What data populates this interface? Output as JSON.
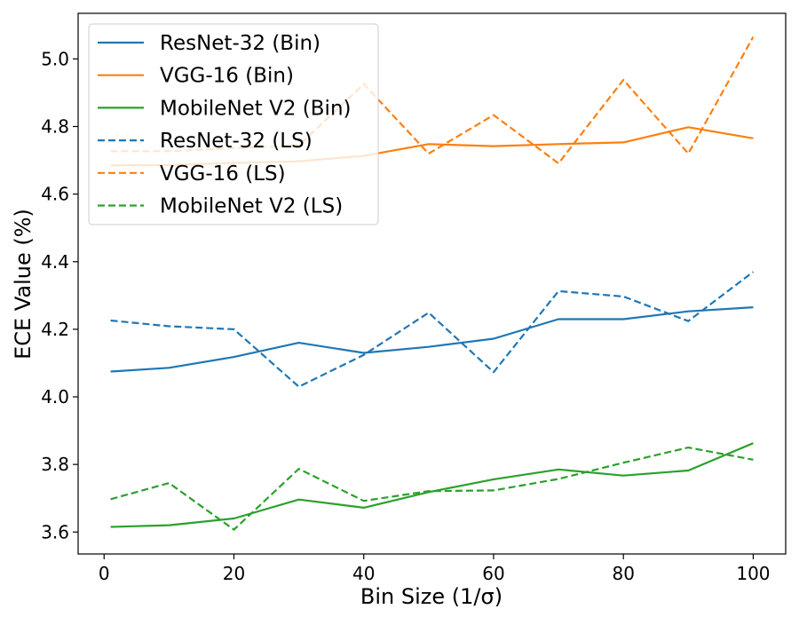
{
  "chart_data": {
    "type": "line",
    "xlabel": "Bin Size (1/σ)",
    "ylabel": "ECE Value (%)",
    "xlim": [
      -4,
      105
    ],
    "ylim": [
      3.535,
      5.135
    ],
    "xticks": [
      0,
      20,
      40,
      60,
      80,
      100
    ],
    "yticks": [
      3.6,
      3.8,
      4.0,
      4.2,
      4.4,
      4.6,
      4.8,
      5.0
    ],
    "xtick_labels": [
      "0",
      "20",
      "40",
      "60",
      "80",
      "100"
    ],
    "ytick_labels": [
      "3.6",
      "3.8",
      "4.0",
      "4.2",
      "4.4",
      "4.6",
      "4.8",
      "5.0"
    ],
    "grid": false,
    "legend_position": "top-left",
    "x": [
      1,
      10,
      20,
      30,
      40,
      50,
      60,
      70,
      80,
      90,
      100
    ],
    "series": [
      {
        "name": "ResNet-32 (Bin)",
        "color": "#1f77b4",
        "dash": "solid",
        "values": [
          4.075,
          4.086,
          4.118,
          4.16,
          4.13,
          4.148,
          4.172,
          4.23,
          4.23,
          4.253,
          4.265
        ]
      },
      {
        "name": "VGG-16 (Bin)",
        "color": "#ff7f0e",
        "dash": "solid",
        "values": [
          4.685,
          4.686,
          4.692,
          4.697,
          4.713,
          4.748,
          4.742,
          4.748,
          4.753,
          4.798,
          4.765
        ]
      },
      {
        "name": "MobileNet V2 (Bin)",
        "color": "#2ca02c",
        "dash": "solid",
        "values": [
          3.615,
          3.62,
          3.64,
          3.696,
          3.672,
          3.718,
          3.756,
          3.785,
          3.767,
          3.782,
          3.863
        ]
      },
      {
        "name": "ResNet-32 (LS)",
        "color": "#1f77b4",
        "dash": "dashed",
        "values": [
          4.226,
          4.209,
          4.2,
          4.03,
          4.124,
          4.249,
          4.073,
          4.313,
          4.297,
          4.224,
          4.37
        ]
      },
      {
        "name": "VGG-16 (LS)",
        "color": "#ff7f0e",
        "dash": "dashed",
        "values": [
          4.727,
          4.727,
          4.736,
          4.744,
          4.926,
          4.72,
          4.834,
          4.691,
          4.938,
          4.72,
          5.065
        ]
      },
      {
        "name": "MobileNet V2 (LS)",
        "color": "#2ca02c",
        "dash": "dashed",
        "values": [
          3.697,
          3.745,
          3.607,
          3.787,
          3.692,
          3.721,
          3.723,
          3.757,
          3.805,
          3.85,
          3.814
        ]
      }
    ]
  }
}
